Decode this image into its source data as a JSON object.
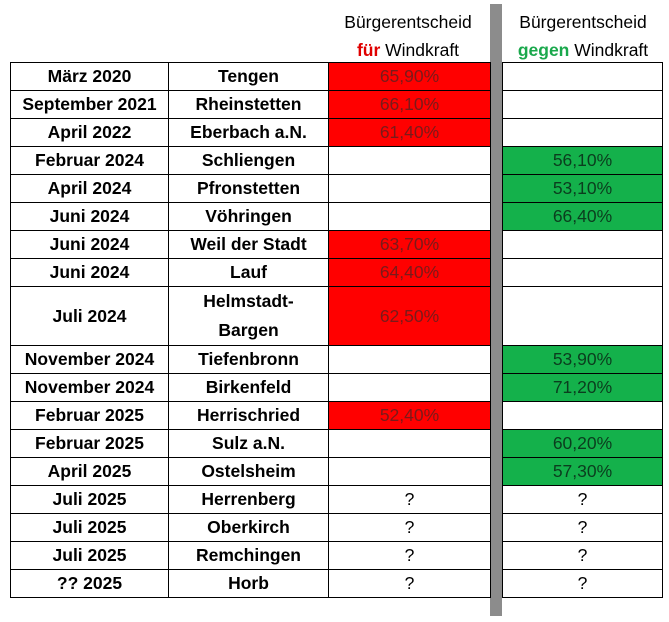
{
  "header": {
    "for": {
      "line1": "Bürgerentscheid",
      "keyword": "für",
      "rest": "Windkraft"
    },
    "against": {
      "line1": "Bürgerentscheid",
      "keyword": "gegen",
      "rest": "Windkraft"
    }
  },
  "colors": {
    "for_result": "#ff0000",
    "against_result": "#14b14b",
    "separator": "#8c8c8c"
  },
  "rows": [
    {
      "date": "März 2020",
      "place": "Tengen",
      "for": "65,90%",
      "against": ""
    },
    {
      "date": "September 2021",
      "place": "Rheinstetten",
      "for": "66,10%",
      "against": ""
    },
    {
      "date": "April 2022",
      "place": "Eberbach a.N.",
      "for": "61,40%",
      "against": ""
    },
    {
      "date": "Februar 2024",
      "place": "Schliengen",
      "for": "",
      "against": "56,10%"
    },
    {
      "date": "April 2024",
      "place": "Pfronstetten",
      "for": "",
      "against": "53,10%"
    },
    {
      "date": "Juni 2024",
      "place": "Vöhringen",
      "for": "",
      "against": "66,40%"
    },
    {
      "date": "Juni 2024",
      "place": "Weil der Stadt",
      "for": "63,70%",
      "against": ""
    },
    {
      "date": "Juni 2024",
      "place": "Lauf",
      "for": "64,40%",
      "against": ""
    },
    {
      "date": "Juli 2024",
      "place": "Helmstadt-",
      "place2": "Bargen",
      "for": "62,50%",
      "against": ""
    },
    {
      "date": "November 2024",
      "place": "Tiefenbronn",
      "for": "",
      "against": "53,90%"
    },
    {
      "date": "November 2024",
      "place": "Birkenfeld",
      "for": "",
      "against": "71,20%"
    },
    {
      "date": "Februar 2025",
      "place": "Herrischried",
      "for": "52,40%",
      "against": ""
    },
    {
      "date": "Februar 2025",
      "place": "Sulz a.N.",
      "for": "",
      "against": "60,20%"
    },
    {
      "date": "April 2025",
      "place": "Ostelsheim",
      "for": "",
      "against": "57,30%"
    },
    {
      "date": "Juli 2025",
      "place": "Herrenberg",
      "for": "?",
      "against": "?"
    },
    {
      "date": "Juli 2025",
      "place": "Oberkirch",
      "for": "?",
      "against": "?"
    },
    {
      "date": "Juli 2025",
      "place": "Remchingen",
      "for": "?",
      "against": "?"
    },
    {
      "date": "?? 2025",
      "place": "Horb",
      "for": "?",
      "against": "?"
    }
  ]
}
